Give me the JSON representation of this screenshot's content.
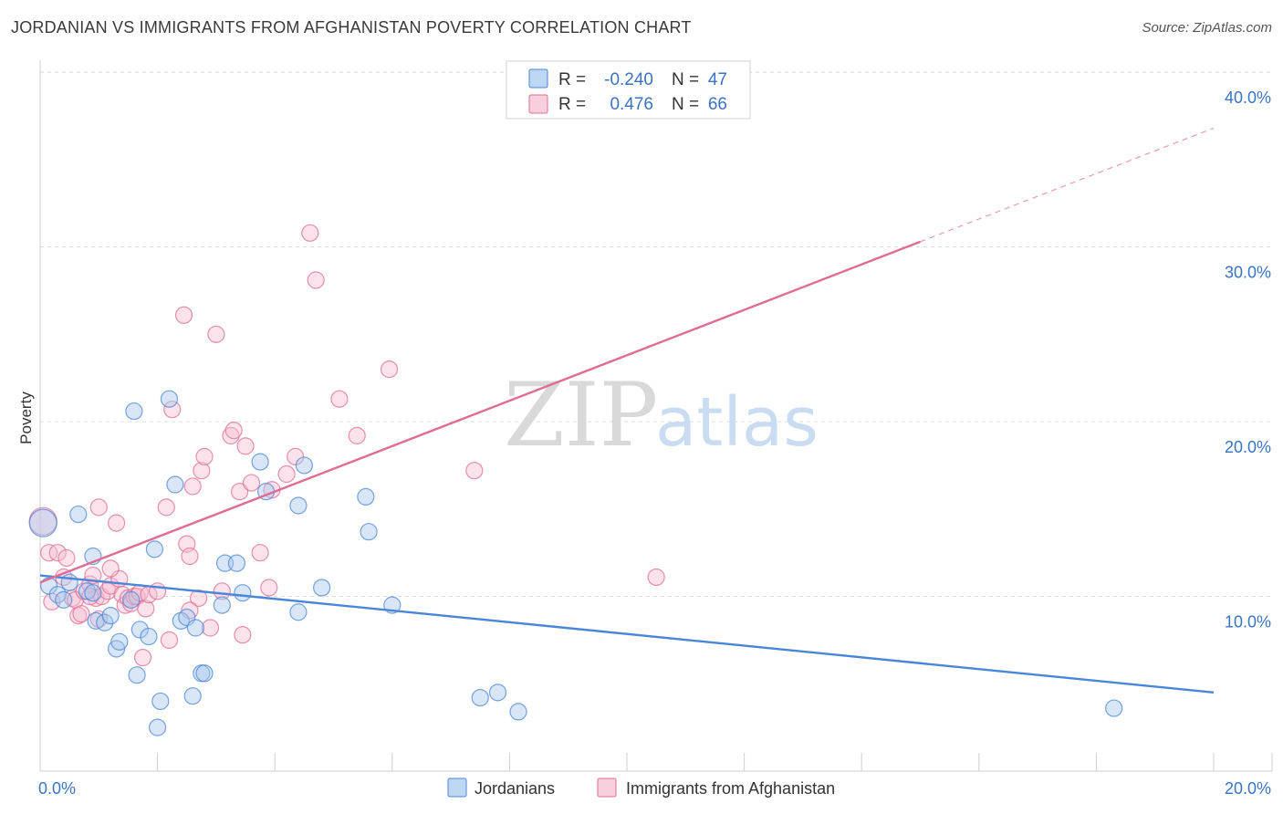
{
  "chart_data": {
    "type": "scatter",
    "title": "JORDANIAN VS IMMIGRANTS FROM AFGHANISTAN POVERTY CORRELATION CHART",
    "source": "Source: ZipAtlas.com",
    "ylabel": "Poverty",
    "xlim": [
      0,
      20
    ],
    "ylim": [
      0,
      41
    ],
    "x_ticks": [
      {
        "value": 0,
        "label": "0.0%"
      },
      {
        "value": 20,
        "label": "20.0%"
      }
    ],
    "x_minor_ticks": [
      0,
      2,
      4,
      6,
      8,
      10,
      12,
      14,
      16,
      18,
      20
    ],
    "y_ticks": [
      {
        "value": 10,
        "label": "10.0%"
      },
      {
        "value": 20,
        "label": "20.0%"
      },
      {
        "value": 30,
        "label": "30.0%"
      },
      {
        "value": 40,
        "label": "40.0%"
      }
    ],
    "watermark": {
      "zip": "ZIP",
      "atlas": "atlas"
    },
    "legend": {
      "r_label": "R =",
      "n_label": "N =",
      "entries": [
        {
          "r": "-0.240",
          "n": "47"
        },
        {
          "r": "0.476",
          "n": "66"
        }
      ]
    },
    "series": [
      {
        "name": "Jordanians",
        "color": "#4a86d8",
        "fill": "#a9c8ee",
        "trend": {
          "x0": 0,
          "y0": 11.2,
          "x1": 20,
          "y1": 4.5,
          "dash_to": null
        },
        "points": [
          [
            0.05,
            14.2
          ],
          [
            0.15,
            10.6
          ],
          [
            0.3,
            10.1
          ],
          [
            0.4,
            9.8
          ],
          [
            0.5,
            10.8
          ],
          [
            0.65,
            14.7
          ],
          [
            0.8,
            10.3
          ],
          [
            0.9,
            10.2
          ],
          [
            0.9,
            12.3
          ],
          [
            0.95,
            8.6
          ],
          [
            1.1,
            8.5
          ],
          [
            1.2,
            8.9
          ],
          [
            1.3,
            7.0
          ],
          [
            1.35,
            7.4
          ],
          [
            1.55,
            9.8
          ],
          [
            1.6,
            20.6
          ],
          [
            1.65,
            5.5
          ],
          [
            1.7,
            8.1
          ],
          [
            1.85,
            7.7
          ],
          [
            1.95,
            12.7
          ],
          [
            2.05,
            4.0
          ],
          [
            2.0,
            2.5
          ],
          [
            2.2,
            21.3
          ],
          [
            2.3,
            16.4
          ],
          [
            2.4,
            8.6
          ],
          [
            2.5,
            8.8
          ],
          [
            2.6,
            4.3
          ],
          [
            2.65,
            8.2
          ],
          [
            2.75,
            5.6
          ],
          [
            3.1,
            9.5
          ],
          [
            3.15,
            11.9
          ],
          [
            3.35,
            11.9
          ],
          [
            3.45,
            10.2
          ],
          [
            3.75,
            17.7
          ],
          [
            3.85,
            16.0
          ],
          [
            4.4,
            9.1
          ],
          [
            4.4,
            15.2
          ],
          [
            4.5,
            17.5
          ],
          [
            4.8,
            10.5
          ],
          [
            5.55,
            15.7
          ],
          [
            5.6,
            13.7
          ],
          [
            6.0,
            9.5
          ],
          [
            7.5,
            4.2
          ],
          [
            7.8,
            4.5
          ],
          [
            8.15,
            3.4
          ],
          [
            18.3,
            3.6
          ],
          [
            2.8,
            5.6
          ]
        ]
      },
      {
        "name": "Immigrants from Afghanistan",
        "color": "#e06b94",
        "fill": "#f6bfd2",
        "trend": {
          "x0": 0,
          "y0": 10.8,
          "x1": 15,
          "y1": 30.3,
          "dash_to": {
            "x": 20,
            "y": 36.8
          }
        },
        "points": [
          [
            0.05,
            14.3
          ],
          [
            0.15,
            12.5
          ],
          [
            0.2,
            9.7
          ],
          [
            0.3,
            12.5
          ],
          [
            0.4,
            11.1
          ],
          [
            0.45,
            12.2
          ],
          [
            0.55,
            9.9
          ],
          [
            0.6,
            9.8
          ],
          [
            0.65,
            8.9
          ],
          [
            0.7,
            9.0
          ],
          [
            0.75,
            10.3
          ],
          [
            0.85,
            10.7
          ],
          [
            0.9,
            11.2
          ],
          [
            0.95,
            9.9
          ],
          [
            1.0,
            15.1
          ],
          [
            1.05,
            10.0
          ],
          [
            1.15,
            10.3
          ],
          [
            1.2,
            10.6
          ],
          [
            1.3,
            14.2
          ],
          [
            1.35,
            11.0
          ],
          [
            1.4,
            10.1
          ],
          [
            1.45,
            9.5
          ],
          [
            1.5,
            9.9
          ],
          [
            1.55,
            9.6
          ],
          [
            1.6,
            10.0
          ],
          [
            1.65,
            10.0
          ],
          [
            1.7,
            10.2
          ],
          [
            1.75,
            6.5
          ],
          [
            1.8,
            9.3
          ],
          [
            1.85,
            10.1
          ],
          [
            2.0,
            10.3
          ],
          [
            2.15,
            15.1
          ],
          [
            2.25,
            20.7
          ],
          [
            2.45,
            26.1
          ],
          [
            2.5,
            13.0
          ],
          [
            2.55,
            12.3
          ],
          [
            2.6,
            16.3
          ],
          [
            2.7,
            9.9
          ],
          [
            2.75,
            17.2
          ],
          [
            2.8,
            18.0
          ],
          [
            2.9,
            8.2
          ],
          [
            3.0,
            25.0
          ],
          [
            3.1,
            10.3
          ],
          [
            3.25,
            19.2
          ],
          [
            3.3,
            19.5
          ],
          [
            3.4,
            16.0
          ],
          [
            3.45,
            7.8
          ],
          [
            3.5,
            18.6
          ],
          [
            3.6,
            16.5
          ],
          [
            3.75,
            12.5
          ],
          [
            3.9,
            10.5
          ],
          [
            4.2,
            17.0
          ],
          [
            4.35,
            18.0
          ],
          [
            4.6,
            30.8
          ],
          [
            4.7,
            28.1
          ],
          [
            5.1,
            21.3
          ],
          [
            5.4,
            19.2
          ],
          [
            5.95,
            23.0
          ],
          [
            7.4,
            17.2
          ],
          [
            10.5,
            11.1
          ],
          [
            2.2,
            7.5
          ],
          [
            1.0,
            8.7
          ],
          [
            3.95,
            16.1
          ],
          [
            2.55,
            9.2
          ],
          [
            1.2,
            11.6
          ],
          [
            0.85,
            10.0
          ]
        ]
      }
    ]
  }
}
